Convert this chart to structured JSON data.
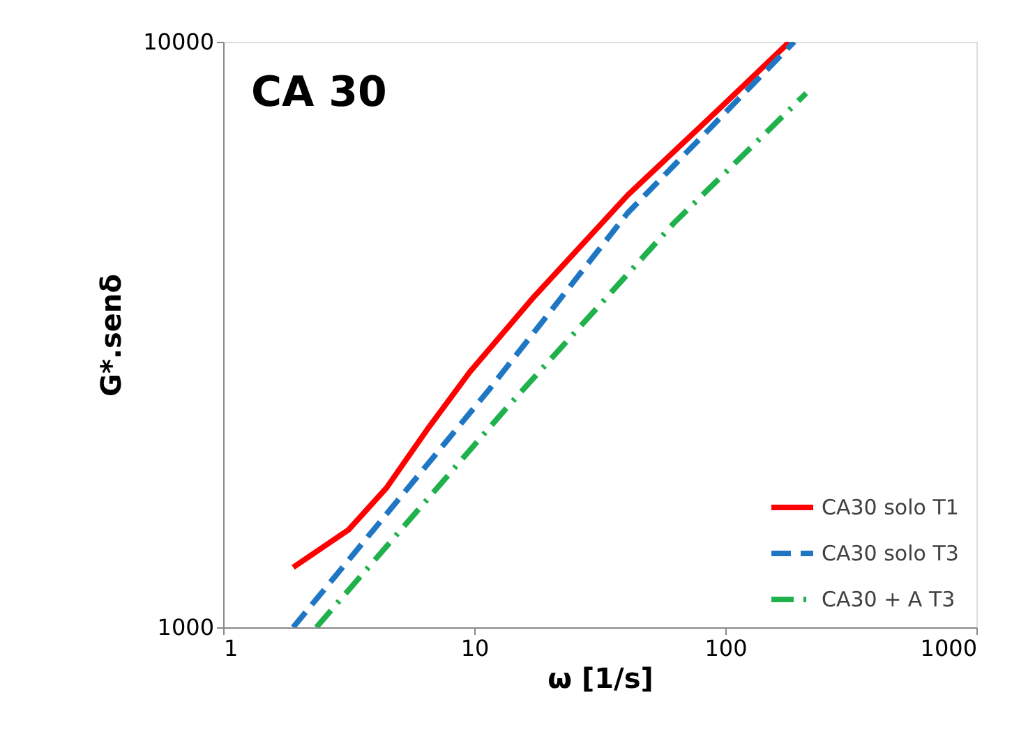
{
  "chart_data": {
    "type": "line",
    "title": "CA 30",
    "xlabel": "ω [1/s]",
    "ylabel": "G*.senδ",
    "log": "xy",
    "xlim": [
      1,
      1000
    ],
    "xticks": [
      1,
      10,
      100,
      1000
    ],
    "ylim": [
      1000,
      10000
    ],
    "yticks": [
      1000,
      10000
    ],
    "grid": false,
    "legend": "bottom right",
    "marker": "none",
    "series": [
      {
        "name": "CA30 solo T1",
        "color": "#ff0000",
        "line_style": "solid",
        "x": [
          1.9,
          3.16,
          4.47,
          6.56,
          9.6,
          17.3,
          40.8,
          96,
          180
        ],
        "values": [
          1266,
          1468,
          1730,
          2190,
          2730,
          3670,
          5470,
          7730,
          10000
        ]
      },
      {
        "name": "CA30 solo T3",
        "color": "#1f77c4",
        "line_style": "dashed",
        "x": [
          1.9,
          5.28,
          11.4,
          40.8,
          188
        ],
        "values": [
          1000,
          1702,
          2540,
          5100,
          10000
        ]
      },
      {
        "name": "CA30 + A T3",
        "color": "#1fb14c",
        "line_style": "dashdot",
        "x": [
          2.35,
          13.4,
          62.3,
          210
        ],
        "values": [
          1000,
          2366,
          4900,
          8170
        ]
      }
    ]
  }
}
